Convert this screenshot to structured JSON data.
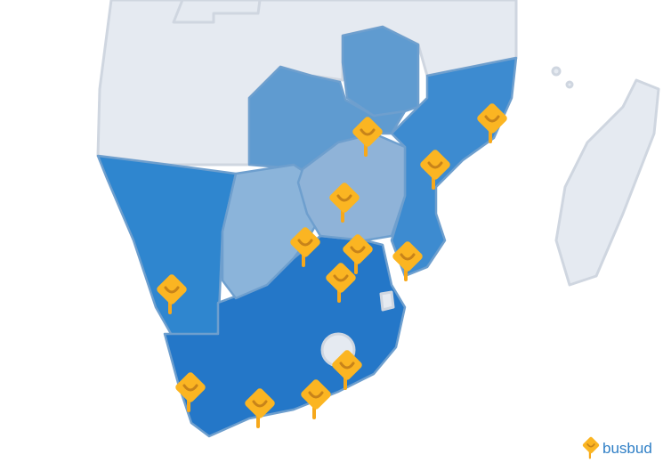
{
  "logo": {
    "text": "busbud"
  }
}
